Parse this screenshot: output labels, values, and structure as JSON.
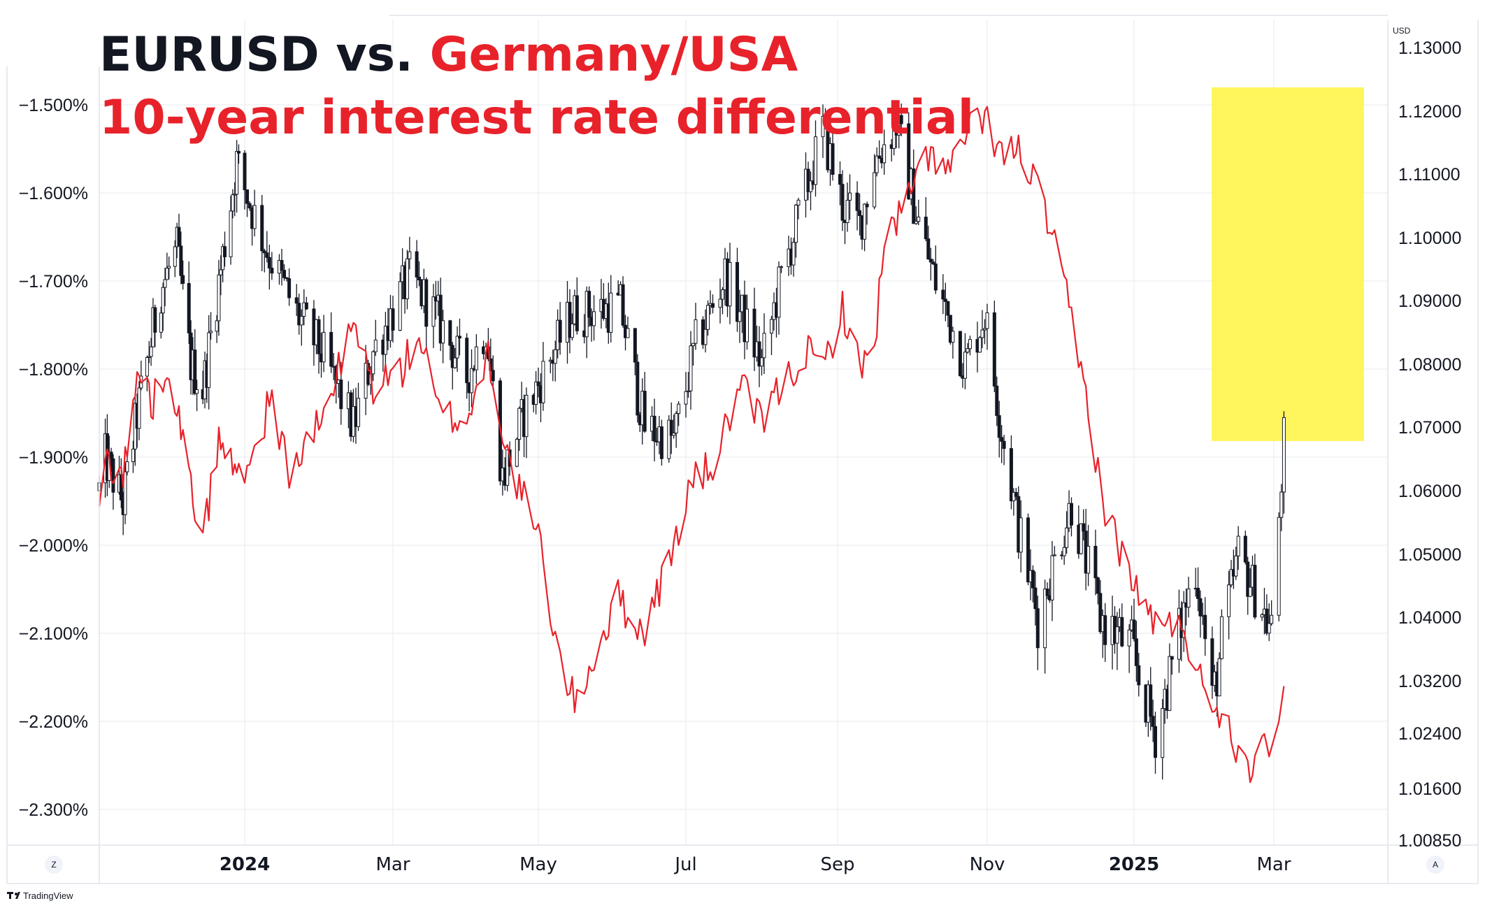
{
  "title": {
    "part1": "EURUSD vs. ",
    "part2": "Germany/USA",
    "line2": "10-year interest rate differential",
    "color_black": "#131722",
    "color_red": "#e8222a"
  },
  "right_axis": {
    "unit": "USD",
    "ticks": [
      "1.13000",
      "1.12000",
      "1.11000",
      "1.10000",
      "1.09000",
      "1.08000",
      "1.07000",
      "1.06000",
      "1.05000",
      "1.04000",
      "1.03200",
      "1.02400",
      "1.01600",
      "1.00850"
    ]
  },
  "left_axis": {
    "ticks": [
      "−1.500%",
      "−1.600%",
      "−1.700%",
      "−1.800%",
      "−1.900%",
      "−2.000%",
      "−2.100%",
      "−2.200%",
      "−2.300%"
    ]
  },
  "x_axis": {
    "labels": [
      {
        "text": "2024",
        "bold": true
      },
      {
        "text": "Mar",
        "bold": false
      },
      {
        "text": "May",
        "bold": false
      },
      {
        "text": "Jul",
        "bold": false
      },
      {
        "text": "Sep",
        "bold": false
      },
      {
        "text": "Nov",
        "bold": false
      },
      {
        "text": "2025",
        "bold": true
      },
      {
        "text": "Mar",
        "bold": false
      }
    ]
  },
  "footer": {
    "brand": "TradingView",
    "left_button": "Z",
    "right_button": "A"
  },
  "chart_data": {
    "type": "line",
    "x_range": [
      "2023-10-20",
      "2025-03-05"
    ],
    "series": [
      {
        "chart_type": "candlestick",
        "axis": "right",
        "color": "#131722",
        "anchors": [
          [
            "2023-10-20",
            1.06
          ],
          [
            "2023-10-23",
            1.065
          ],
          [
            "2023-11-01",
            1.058
          ],
          [
            "2023-11-08",
            1.072
          ],
          [
            "2023-11-20",
            1.092
          ],
          [
            "2023-11-28",
            1.098
          ],
          [
            "2023-12-05",
            1.08
          ],
          [
            "2023-12-11",
            1.076
          ],
          [
            "2023-12-20",
            1.095
          ],
          [
            "2023-12-28",
            1.112
          ],
          [
            "2024-01-10",
            1.098
          ],
          [
            "2024-01-22",
            1.088
          ],
          [
            "2024-02-01",
            1.082
          ],
          [
            "2024-02-14",
            1.07
          ],
          [
            "2024-02-22",
            1.082
          ],
          [
            "2024-03-08",
            1.094
          ],
          [
            "2024-03-20",
            1.087
          ],
          [
            "2024-04-01",
            1.078
          ],
          [
            "2024-04-09",
            1.086
          ],
          [
            "2024-04-16",
            1.062
          ],
          [
            "2024-04-25",
            1.072
          ],
          [
            "2024-05-15",
            1.088
          ],
          [
            "2024-06-04",
            1.089
          ],
          [
            "2024-06-14",
            1.07
          ],
          [
            "2024-06-26",
            1.068
          ],
          [
            "2024-07-05",
            1.083
          ],
          [
            "2024-07-17",
            1.094
          ],
          [
            "2024-08-01",
            1.08
          ],
          [
            "2024-08-08",
            1.092
          ],
          [
            "2024-08-26",
            1.117
          ],
          [
            "2024-09-03",
            1.105
          ],
          [
            "2024-09-10",
            1.102
          ],
          [
            "2024-09-16",
            1.112
          ],
          [
            "2024-09-25",
            1.118
          ],
          [
            "2024-10-03",
            1.104
          ],
          [
            "2024-10-10",
            1.094
          ],
          [
            "2024-10-23",
            1.08
          ],
          [
            "2024-10-31",
            1.088
          ],
          [
            "2024-11-06",
            1.072
          ],
          [
            "2024-11-14",
            1.054
          ],
          [
            "2024-11-22",
            1.04
          ],
          [
            "2024-12-06",
            1.058
          ],
          [
            "2024-12-18",
            1.04
          ],
          [
            "2024-12-31",
            1.036
          ],
          [
            "2025-01-10",
            1.024
          ],
          [
            "2025-01-27",
            1.048
          ],
          [
            "2025-02-03",
            1.029
          ],
          [
            "2025-02-14",
            1.05
          ],
          [
            "2025-02-28",
            1.038
          ],
          [
            "2025-03-04",
            1.062
          ],
          [
            "2025-03-05",
            1.068
          ]
        ]
      },
      {
        "chart_type": "line",
        "axis": "left",
        "color": "#e8222a",
        "anchors": [
          [
            "2023-10-20",
            -1.97
          ],
          [
            "2023-10-23",
            -1.9
          ],
          [
            "2023-11-01",
            -1.92
          ],
          [
            "2023-11-09",
            -1.8
          ],
          [
            "2023-11-16",
            -1.84
          ],
          [
            "2023-11-23",
            -1.79
          ],
          [
            "2023-11-28",
            -1.84
          ],
          [
            "2023-12-05",
            -1.94
          ],
          [
            "2023-12-12",
            -1.98
          ],
          [
            "2023-12-19",
            -1.88
          ],
          [
            "2023-12-28",
            -1.92
          ],
          [
            "2024-01-04",
            -1.9
          ],
          [
            "2024-01-12",
            -1.83
          ],
          [
            "2024-01-19",
            -1.92
          ],
          [
            "2024-02-01",
            -1.86
          ],
          [
            "2024-02-14",
            -1.75
          ],
          [
            "2024-02-22",
            -1.82
          ],
          [
            "2024-03-05",
            -1.8
          ],
          [
            "2024-03-12",
            -1.76
          ],
          [
            "2024-03-20",
            -1.85
          ],
          [
            "2024-04-01",
            -1.86
          ],
          [
            "2024-04-10",
            -1.78
          ],
          [
            "2024-04-18",
            -1.9
          ],
          [
            "2024-05-01",
            -1.99
          ],
          [
            "2024-05-09",
            -2.12
          ],
          [
            "2024-05-16",
            -2.18
          ],
          [
            "2024-05-22",
            -2.14
          ],
          [
            "2024-06-03",
            -2.06
          ],
          [
            "2024-06-13",
            -2.1
          ],
          [
            "2024-06-24",
            -2.02
          ],
          [
            "2024-07-03",
            -1.93
          ],
          [
            "2024-07-12",
            -1.91
          ],
          [
            "2024-07-23",
            -1.82
          ],
          [
            "2024-08-01",
            -1.86
          ],
          [
            "2024-08-09",
            -1.82
          ],
          [
            "2024-08-19",
            -1.78
          ],
          [
            "2024-08-26",
            -1.8
          ],
          [
            "2024-09-03",
            -1.73
          ],
          [
            "2024-09-10",
            -1.8
          ],
          [
            "2024-09-16",
            -1.77
          ],
          [
            "2024-09-20",
            -1.66
          ],
          [
            "2024-10-01",
            -1.6
          ],
          [
            "2024-10-09",
            -1.55
          ],
          [
            "2024-10-16",
            -1.58
          ],
          [
            "2024-10-24",
            -1.53
          ],
          [
            "2024-11-01",
            -1.52
          ],
          [
            "2024-11-08",
            -1.56
          ],
          [
            "2024-11-15",
            -1.55
          ],
          [
            "2024-11-25",
            -1.62
          ],
          [
            "2024-12-04",
            -1.72
          ],
          [
            "2024-12-12",
            -1.83
          ],
          [
            "2024-12-20",
            -1.96
          ],
          [
            "2025-01-03",
            -2.06
          ],
          [
            "2025-01-14",
            -2.1
          ],
          [
            "2025-01-21",
            -2.08
          ],
          [
            "2025-01-28",
            -2.15
          ],
          [
            "2025-02-05",
            -2.18
          ],
          [
            "2025-02-12",
            -2.22
          ],
          [
            "2025-02-19",
            -2.25
          ],
          [
            "2025-02-24",
            -2.2
          ],
          [
            "2025-02-27",
            -2.24
          ],
          [
            "2025-03-03",
            -2.2
          ],
          [
            "2025-03-05",
            -2.16
          ]
        ]
      }
    ]
  }
}
